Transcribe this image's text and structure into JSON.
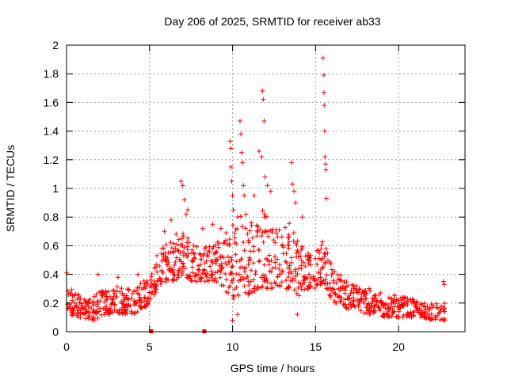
{
  "chart_data": {
    "type": "scatter",
    "title": "Day 206 of 2025, SRMTID for receiver ab33",
    "xlabel": "GPS time / hours",
    "ylabel": "SRMTID / TECUs",
    "xlim": [
      0,
      24
    ],
    "ylim": [
      0,
      2
    ],
    "xticks": [
      0,
      5,
      10,
      15,
      20
    ],
    "xtick_labels": [
      "0",
      "5",
      "10",
      "15",
      "20"
    ],
    "yticks": [
      0,
      0.2,
      0.4,
      0.6,
      0.8,
      1,
      1.2,
      1.4,
      1.6,
      1.8,
      2
    ],
    "ytick_labels": [
      "0",
      "0.2",
      "0.4",
      "0.6",
      "0.8",
      "1",
      "1.2",
      "1.4",
      "1.6",
      "1.8",
      "2"
    ],
    "grid": true,
    "marker": "+",
    "color": "#ff0000",
    "baseline_markers": [
      {
        "x": 5.1,
        "y": 0
      },
      {
        "x": 8.3,
        "y": 0
      }
    ],
    "envelope": [
      {
        "x": 0.0,
        "low": 0.12,
        "high": 0.32
      },
      {
        "x": 0.5,
        "low": 0.1,
        "high": 0.28
      },
      {
        "x": 1.0,
        "low": 0.1,
        "high": 0.25
      },
      {
        "x": 1.5,
        "low": 0.07,
        "high": 0.22
      },
      {
        "x": 2.0,
        "low": 0.1,
        "high": 0.3
      },
      {
        "x": 2.5,
        "low": 0.12,
        "high": 0.28
      },
      {
        "x": 3.0,
        "low": 0.13,
        "high": 0.32
      },
      {
        "x": 3.5,
        "low": 0.12,
        "high": 0.3
      },
      {
        "x": 4.0,
        "low": 0.12,
        "high": 0.32
      },
      {
        "x": 4.5,
        "low": 0.15,
        "high": 0.35
      },
      {
        "x": 5.0,
        "low": 0.2,
        "high": 0.38
      },
      {
        "x": 5.5,
        "low": 0.3,
        "high": 0.55
      },
      {
        "x": 6.0,
        "low": 0.35,
        "high": 0.62
      },
      {
        "x": 6.5,
        "low": 0.35,
        "high": 0.65
      },
      {
        "x": 7.0,
        "low": 0.4,
        "high": 0.72
      },
      {
        "x": 7.5,
        "low": 0.35,
        "high": 0.65
      },
      {
        "x": 8.0,
        "low": 0.35,
        "high": 0.62
      },
      {
        "x": 8.5,
        "low": 0.35,
        "high": 0.6
      },
      {
        "x": 9.0,
        "low": 0.35,
        "high": 0.62
      },
      {
        "x": 9.5,
        "low": 0.3,
        "high": 0.7
      },
      {
        "x": 10.0,
        "low": 0.2,
        "high": 0.8
      },
      {
        "x": 10.5,
        "low": 0.25,
        "high": 0.85
      },
      {
        "x": 11.0,
        "low": 0.25,
        "high": 0.75
      },
      {
        "x": 11.5,
        "low": 0.3,
        "high": 0.9
      },
      {
        "x": 12.0,
        "low": 0.3,
        "high": 0.85
      },
      {
        "x": 12.5,
        "low": 0.3,
        "high": 0.7
      },
      {
        "x": 13.0,
        "low": 0.3,
        "high": 0.75
      },
      {
        "x": 13.5,
        "low": 0.3,
        "high": 0.85
      },
      {
        "x": 14.0,
        "low": 0.25,
        "high": 0.65
      },
      {
        "x": 14.5,
        "low": 0.3,
        "high": 0.6
      },
      {
        "x": 15.0,
        "low": 0.3,
        "high": 0.55
      },
      {
        "x": 15.5,
        "low": 0.35,
        "high": 0.65
      },
      {
        "x": 16.0,
        "low": 0.2,
        "high": 0.45
      },
      {
        "x": 16.5,
        "low": 0.2,
        "high": 0.4
      },
      {
        "x": 17.0,
        "low": 0.15,
        "high": 0.35
      },
      {
        "x": 17.5,
        "low": 0.15,
        "high": 0.33
      },
      {
        "x": 18.0,
        "low": 0.12,
        "high": 0.32
      },
      {
        "x": 18.5,
        "low": 0.12,
        "high": 0.28
      },
      {
        "x": 19.0,
        "low": 0.1,
        "high": 0.28
      },
      {
        "x": 19.5,
        "low": 0.1,
        "high": 0.26
      },
      {
        "x": 20.0,
        "low": 0.1,
        "high": 0.25
      },
      {
        "x": 20.5,
        "low": 0.1,
        "high": 0.24
      },
      {
        "x": 21.0,
        "low": 0.1,
        "high": 0.22
      },
      {
        "x": 21.5,
        "low": 0.1,
        "high": 0.2
      },
      {
        "x": 22.0,
        "low": 0.08,
        "high": 0.2
      },
      {
        "x": 22.8,
        "low": 0.08,
        "high": 0.2
      }
    ],
    "outliers": [
      [
        0.02,
        0.41
      ],
      [
        1.9,
        0.4
      ],
      [
        3.1,
        0.38
      ],
      [
        4.3,
        0.4
      ],
      [
        5.9,
        0.7
      ],
      [
        6.3,
        0.78
      ],
      [
        6.6,
        0.68
      ],
      [
        6.9,
        1.05
      ],
      [
        7.0,
        1.02
      ],
      [
        7.1,
        0.92
      ],
      [
        7.2,
        0.82
      ],
      [
        7.3,
        0.85
      ],
      [
        8.2,
        0.72
      ],
      [
        8.8,
        0.75
      ],
      [
        9.3,
        0.72
      ],
      [
        9.85,
        1.33
      ],
      [
        9.9,
        1.28
      ],
      [
        9.9,
        1.15
      ],
      [
        9.95,
        1.05
      ],
      [
        10.0,
        0.95
      ],
      [
        10.0,
        0.08
      ],
      [
        10.05,
        0.85
      ],
      [
        10.3,
        0.12
      ],
      [
        10.45,
        1.47
      ],
      [
        10.5,
        1.38
      ],
      [
        10.55,
        1.25
      ],
      [
        10.6,
        1.18
      ],
      [
        10.65,
        1.02
      ],
      [
        10.7,
        0.95
      ],
      [
        10.8,
        0.82
      ],
      [
        11.3,
        0.95
      ],
      [
        11.6,
        1.26
      ],
      [
        11.75,
        1.22
      ],
      [
        11.8,
        1.68
      ],
      [
        11.85,
        1.62
      ],
      [
        11.9,
        1.47
      ],
      [
        11.95,
        1.08
      ],
      [
        12.1,
        1.02
      ],
      [
        12.3,
        0.98
      ],
      [
        13.55,
        1.18
      ],
      [
        13.6,
        1.03
      ],
      [
        13.7,
        0.98
      ],
      [
        13.8,
        0.9
      ],
      [
        13.9,
        0.12
      ],
      [
        14.2,
        0.8
      ],
      [
        15.45,
        1.91
      ],
      [
        15.5,
        1.79
      ],
      [
        15.5,
        1.67
      ],
      [
        15.52,
        1.58
      ],
      [
        15.55,
        1.4
      ],
      [
        15.57,
        1.22
      ],
      [
        15.6,
        1.17
      ],
      [
        15.62,
        1.13
      ],
      [
        15.65,
        0.93
      ],
      [
        22.7,
        0.35
      ],
      [
        22.75,
        0.33
      ]
    ]
  }
}
